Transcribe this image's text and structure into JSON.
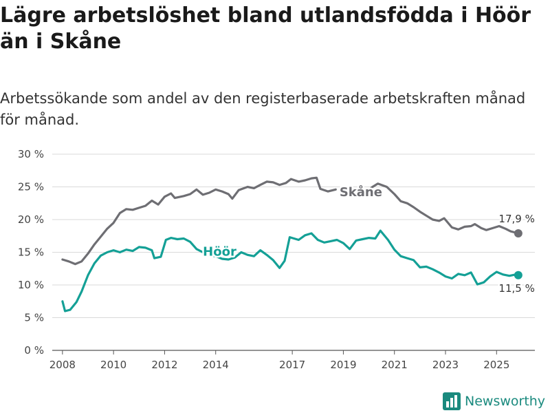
{
  "title": "Lägre arbetslöshet bland utlandsfödda i Höör än i Skåne",
  "subtitle": "Arbetssökande som andel av den registerbaserade arbetskraften månad för månad.",
  "brand": {
    "name": "Newsworthy",
    "logo_icon": "bar-chart-logo-icon",
    "color": "#1a8a7e"
  },
  "chart_data": {
    "type": "line",
    "ylim": [
      0,
      30
    ],
    "xlim": [
      2007.6,
      2026.5
    ],
    "y_ticks": [
      0,
      5,
      10,
      15,
      20,
      25,
      30
    ],
    "y_tick_labels": [
      "0 %",
      "5 %",
      "10 %",
      "15 %",
      "20 %",
      "25 %",
      "30 %"
    ],
    "x_ticks": [
      2008,
      2010,
      2012,
      2014,
      2017,
      2019,
      2021,
      2023,
      2025
    ],
    "x_tick_labels": [
      "2008",
      "2010",
      "2012",
      "2014",
      "2017",
      "2019",
      "2021",
      "2023",
      "2025"
    ],
    "grid": true,
    "series": [
      {
        "name": "Skåne",
        "color": "#6e6e73",
        "label": "Skåne",
        "end_label": "17,9 %",
        "points": [
          [
            2008.0,
            13.9
          ],
          [
            2008.25,
            13.6
          ],
          [
            2008.5,
            13.2
          ],
          [
            2008.75,
            13.6
          ],
          [
            2009.0,
            14.8
          ],
          [
            2009.25,
            16.2
          ],
          [
            2009.5,
            17.4
          ],
          [
            2009.75,
            18.6
          ],
          [
            2010.0,
            19.5
          ],
          [
            2010.25,
            21.0
          ],
          [
            2010.5,
            21.6
          ],
          [
            2010.75,
            21.5
          ],
          [
            2011.0,
            21.8
          ],
          [
            2011.25,
            22.1
          ],
          [
            2011.5,
            22.9
          ],
          [
            2011.75,
            22.3
          ],
          [
            2012.0,
            23.5
          ],
          [
            2012.25,
            24.0
          ],
          [
            2012.4,
            23.3
          ],
          [
            2012.75,
            23.6
          ],
          [
            2013.0,
            23.9
          ],
          [
            2013.25,
            24.6
          ],
          [
            2013.5,
            23.8
          ],
          [
            2013.75,
            24.1
          ],
          [
            2014.0,
            24.6
          ],
          [
            2014.25,
            24.3
          ],
          [
            2014.5,
            23.9
          ],
          [
            2014.65,
            23.2
          ],
          [
            2014.9,
            24.5
          ],
          [
            2015.25,
            25.0
          ],
          [
            2015.5,
            24.8
          ],
          [
            2015.75,
            25.3
          ],
          [
            2016.0,
            25.8
          ],
          [
            2016.25,
            25.7
          ],
          [
            2016.5,
            25.3
          ],
          [
            2016.75,
            25.6
          ],
          [
            2016.95,
            26.2
          ],
          [
            2017.25,
            25.8
          ],
          [
            2017.5,
            26.0
          ],
          [
            2017.75,
            26.3
          ],
          [
            2017.95,
            26.4
          ],
          [
            2018.1,
            24.7
          ],
          [
            2018.4,
            24.3
          ],
          [
            2018.7,
            24.6
          ]
        ],
        "points_2": [
          [
            2020.1,
            24.9
          ],
          [
            2020.35,
            25.5
          ],
          [
            2020.7,
            25.0
          ],
          [
            2021.0,
            23.9
          ],
          [
            2021.25,
            22.8
          ],
          [
            2021.5,
            22.5
          ],
          [
            2021.75,
            21.9
          ],
          [
            2022.0,
            21.2
          ],
          [
            2022.25,
            20.6
          ],
          [
            2022.5,
            20.0
          ],
          [
            2022.75,
            19.8
          ],
          [
            2022.95,
            20.2
          ],
          [
            2023.25,
            18.8
          ],
          [
            2023.5,
            18.5
          ],
          [
            2023.75,
            18.9
          ],
          [
            2024.0,
            19.0
          ],
          [
            2024.15,
            19.3
          ],
          [
            2024.4,
            18.7
          ],
          [
            2024.6,
            18.4
          ],
          [
            2024.85,
            18.7
          ],
          [
            2025.1,
            19.0
          ],
          [
            2025.35,
            18.6
          ],
          [
            2025.55,
            18.2
          ],
          [
            2025.75,
            18.0
          ],
          [
            2025.85,
            17.9
          ]
        ]
      },
      {
        "name": "Höör",
        "color": "#14a096",
        "label": "Höör",
        "end_label": "11,5 %",
        "points": [
          [
            2008.0,
            7.5
          ],
          [
            2008.1,
            6.0
          ],
          [
            2008.3,
            6.2
          ],
          [
            2008.55,
            7.4
          ],
          [
            2008.75,
            9.0
          ],
          [
            2009.0,
            11.5
          ],
          [
            2009.25,
            13.3
          ],
          [
            2009.5,
            14.5
          ],
          [
            2009.75,
            15.0
          ],
          [
            2010.0,
            15.3
          ],
          [
            2010.25,
            15.0
          ],
          [
            2010.5,
            15.4
          ],
          [
            2010.75,
            15.2
          ],
          [
            2011.0,
            15.8
          ],
          [
            2011.25,
            15.7
          ],
          [
            2011.5,
            15.3
          ],
          [
            2011.6,
            14.1
          ],
          [
            2011.85,
            14.3
          ],
          [
            2012.05,
            16.9
          ],
          [
            2012.25,
            17.2
          ],
          [
            2012.5,
            17.0
          ],
          [
            2012.75,
            17.1
          ],
          [
            2013.0,
            16.6
          ],
          [
            2013.25,
            15.5
          ],
          [
            2013.5,
            15.0
          ],
          [
            2013.75,
            14.5
          ],
          [
            2014.0,
            14.4
          ],
          [
            2014.25,
            14.0
          ],
          [
            2014.5,
            13.9
          ],
          [
            2014.75,
            14.2
          ],
          [
            2015.0,
            15.0
          ],
          [
            2015.25,
            14.6
          ],
          [
            2015.5,
            14.4
          ],
          [
            2015.75,
            15.3
          ],
          [
            2016.0,
            14.6
          ],
          [
            2016.25,
            13.8
          ],
          [
            2016.5,
            12.6
          ],
          [
            2016.7,
            13.7
          ],
          [
            2016.9,
            17.3
          ],
          [
            2017.25,
            16.9
          ],
          [
            2017.5,
            17.6
          ],
          [
            2017.75,
            17.9
          ],
          [
            2018.0,
            16.9
          ],
          [
            2018.25,
            16.5
          ],
          [
            2018.5,
            16.7
          ],
          [
            2018.75,
            16.9
          ],
          [
            2019.0,
            16.4
          ],
          [
            2019.25,
            15.5
          ],
          [
            2019.5,
            16.8
          ],
          [
            2019.75,
            17.0
          ],
          [
            2020.0,
            17.2
          ],
          [
            2020.25,
            17.1
          ],
          [
            2020.45,
            18.3
          ],
          [
            2020.75,
            16.9
          ],
          [
            2021.0,
            15.4
          ],
          [
            2021.25,
            14.4
          ],
          [
            2021.5,
            14.1
          ],
          [
            2021.75,
            13.8
          ],
          [
            2022.0,
            12.7
          ],
          [
            2022.25,
            12.8
          ],
          [
            2022.5,
            12.4
          ],
          [
            2022.75,
            11.9
          ],
          [
            2023.0,
            11.3
          ],
          [
            2023.25,
            11.0
          ],
          [
            2023.5,
            11.7
          ],
          [
            2023.75,
            11.5
          ],
          [
            2024.0,
            11.9
          ],
          [
            2024.25,
            10.1
          ],
          [
            2024.5,
            10.4
          ],
          [
            2024.75,
            11.3
          ],
          [
            2025.0,
            12.0
          ],
          [
            2025.25,
            11.6
          ],
          [
            2025.5,
            11.4
          ],
          [
            2025.75,
            11.6
          ],
          [
            2025.85,
            11.5
          ]
        ]
      }
    ]
  }
}
